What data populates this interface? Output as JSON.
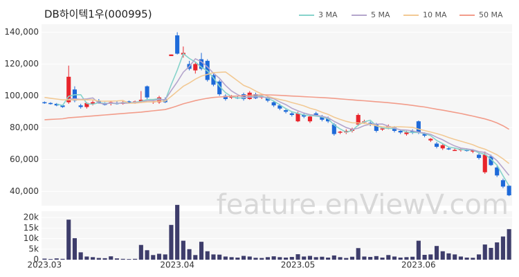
{
  "chart_data": {
    "type": "candlestick",
    "title": "DB하이텍1우(000995)",
    "watermark": "feature.enViewV.com",
    "up_color": "#e8242b",
    "down_color": "#1e6ad9",
    "grid": true,
    "legend": "top-right",
    "categories": [
      "2023.03",
      null,
      null,
      null,
      null,
      null,
      null,
      null,
      null,
      null,
      null,
      null,
      null,
      null,
      null,
      null,
      null,
      null,
      null,
      null,
      null,
      null,
      "2023.04",
      null,
      null,
      null,
      null,
      null,
      null,
      null,
      null,
      null,
      null,
      null,
      null,
      null,
      null,
      null,
      null,
      null,
      null,
      null,
      "2023.05",
      null,
      null,
      null,
      null,
      null,
      null,
      null,
      null,
      null,
      null,
      null,
      null,
      null,
      null,
      null,
      null,
      null,
      null,
      null,
      "2023.06",
      null,
      null,
      null,
      null,
      null,
      null,
      null,
      null,
      null,
      null,
      null,
      null,
      null,
      null,
      null
    ],
    "open": [
      96000,
      95500,
      95000,
      94000,
      96000,
      104000,
      94000,
      93000,
      95000,
      97000,
      95000,
      95000,
      95500,
      95000,
      96500,
      95500,
      96000,
      106000,
      96000,
      96000,
      98000,
      125000,
      138000,
      126000,
      120000,
      116000,
      123000,
      122000,
      113000,
      109000,
      100000,
      99000,
      99000,
      101000,
      98000,
      101000,
      99000,
      99000,
      96000,
      94000,
      91000,
      89000,
      84000,
      88000,
      84000,
      89000,
      87000,
      86000,
      82000,
      77000,
      77000,
      78000,
      82000,
      84000,
      83000,
      82000,
      79000,
      80000,
      80000,
      78000,
      76000,
      78000,
      84000,
      76000,
      72000,
      70000,
      67000,
      67000,
      66000,
      66000,
      66000,
      65000,
      63000,
      52000,
      62000,
      55000,
      47000,
      43500
    ],
    "high": [
      96500,
      96000,
      95500,
      94500,
      119000,
      106000,
      95000,
      96000,
      97000,
      98000,
      96000,
      97000,
      96500,
      97000,
      97000,
      97000,
      103000,
      106500,
      97500,
      100000,
      99000,
      126000,
      140000,
      131000,
      122000,
      121000,
      127000,
      123000,
      114000,
      110000,
      101000,
      100500,
      100000,
      102000,
      103000,
      102000,
      100000,
      100000,
      97000,
      95000,
      92000,
      90000,
      90000,
      89000,
      88000,
      90000,
      88000,
      87000,
      83000,
      78000,
      79000,
      80000,
      89000,
      85000,
      84000,
      83000,
      80000,
      82000,
      81000,
      79000,
      78000,
      79000,
      84500,
      77000,
      73500,
      71000,
      70000,
      68000,
      67000,
      67000,
      67000,
      66500,
      64000,
      65000,
      63000,
      56000,
      48000,
      44000
    ],
    "low": [
      95000,
      94500,
      93500,
      92500,
      95000,
      96000,
      92000,
      92000,
      94000,
      95000,
      94000,
      94000,
      94500,
      94500,
      95000,
      95000,
      95500,
      98000,
      95000,
      95000,
      95500,
      125000,
      126000,
      124000,
      116000,
      114000,
      116000,
      109000,
      106000,
      100000,
      97000,
      98000,
      98000,
      97000,
      97500,
      98000,
      98000,
      96000,
      93000,
      91000,
      89000,
      87000,
      83500,
      86000,
      83000,
      87000,
      84000,
      83000,
      75000,
      76000,
      76000,
      77000,
      81000,
      83000,
      81000,
      77000,
      78000,
      79000,
      77000,
      76000,
      75000,
      76000,
      76000,
      74000,
      71000,
      67000,
      66000,
      66000,
      65500,
      65000,
      65000,
      64000,
      60000,
      51000,
      56000,
      49000,
      42000,
      37000
    ],
    "close": [
      95500,
      95000,
      94000,
      93000,
      112000,
      97000,
      93000,
      95500,
      96000,
      95500,
      94500,
      96000,
      95000,
      96000,
      95500,
      96500,
      97500,
      99000,
      96500,
      99000,
      96000,
      126000,
      126500,
      127000,
      117000,
      120000,
      117000,
      110000,
      107000,
      101000,
      98000,
      99500,
      98500,
      98000,
      102000,
      98500,
      99500,
      97000,
      94000,
      92000,
      90000,
      88000,
      89000,
      87000,
      87000,
      88000,
      85000,
      84000,
      76000,
      77500,
      78000,
      79000,
      88000,
      84000,
      82000,
      78000,
      79500,
      81000,
      78000,
      77000,
      77000,
      77000,
      77000,
      75000,
      73000,
      68000,
      69000,
      66500,
      66000,
      66500,
      65500,
      66000,
      61000,
      63000,
      56500,
      50000,
      43000,
      37500
    ],
    "ylim": [
      31000,
      145000
    ],
    "yticks": [
      {
        "value": 40000,
        "label": "40,000"
      },
      {
        "value": 60000,
        "label": "60,000"
      },
      {
        "value": 80000,
        "label": "80,000"
      },
      {
        "value": 100000,
        "label": "100,000"
      },
      {
        "value": 120000,
        "label": "120,000"
      },
      {
        "value": 140000,
        "label": "140,000"
      }
    ],
    "series": [
      {
        "name": "3 MA",
        "color": "#86d3cb",
        "values": [
          null,
          null,
          94800,
          94000,
          99700,
          100700,
          100700,
          95200,
          94800,
          95700,
          95300,
          95300,
          95200,
          95700,
          95500,
          96000,
          96500,
          97700,
          97700,
          98200,
          97200,
          107000,
          116200,
          126500,
          123500,
          121300,
          118000,
          115700,
          111300,
          106000,
          102000,
          99500,
          98700,
          98700,
          99500,
          99500,
          100000,
          98300,
          96800,
          94300,
          92000,
          90000,
          89000,
          88000,
          87700,
          87300,
          86700,
          85700,
          81700,
          79200,
          77200,
          78200,
          81700,
          83700,
          84700,
          81300,
          79800,
          79500,
          79500,
          78700,
          77300,
          77000,
          77000,
          76300,
          75000,
          72000,
          70000,
          67800,
          67200,
          66300,
          66000,
          66000,
          64200,
          63300,
          60200,
          56500,
          49800,
          43500
        ]
      },
      {
        "name": "5 MA",
        "color": "#b4a5cc",
        "values": [
          null,
          null,
          null,
          null,
          97900,
          98200,
          97800,
          98100,
          98700,
          95400,
          94900,
          95500,
          95400,
          95400,
          95400,
          95800,
          96100,
          96900,
          97000,
          97700,
          97600,
          103300,
          108800,
          114900,
          118500,
          123300,
          121500,
          118200,
          114200,
          111000,
          106600,
          103100,
          100800,
          99000,
          99200,
          99300,
          99300,
          99000,
          98200,
          96200,
          94500,
          92200,
          90600,
          89200,
          88200,
          87800,
          87200,
          86200,
          84000,
          82100,
          80100,
          78900,
          79700,
          81300,
          82200,
          82200,
          82300,
          80900,
          79700,
          78700,
          78500,
          78000,
          77200,
          76600,
          75800,
          74000,
          72400,
          70300,
          68500,
          67200,
          66700,
          66100,
          65000,
          64400,
          62400,
          59300,
          54700,
          50000
        ]
      },
      {
        "name": "10 MA",
        "color": "#f2c994",
        "values": [
          99000,
          98500,
          98000,
          97500,
          97500,
          97500,
          97500,
          97500,
          97500,
          96700,
          96600,
          96700,
          96800,
          97100,
          95400,
          95400,
          95800,
          96200,
          96200,
          96600,
          96700,
          99700,
          102900,
          106000,
          108100,
          110500,
          112400,
          113500,
          114600,
          114800,
          115000,
          112300,
          109500,
          106600,
          105100,
          103000,
          101200,
          99900,
          98600,
          97700,
          96900,
          95800,
          94800,
          93700,
          92200,
          91200,
          89700,
          88400,
          86600,
          85200,
          84000,
          83100,
          83000,
          82700,
          82200,
          81200,
          80600,
          80300,
          80500,
          80500,
          80400,
          80200,
          79100,
          78200,
          77300,
          76300,
          75200,
          73800,
          72600,
          71500,
          70400,
          69300,
          67700,
          66500,
          64800,
          63000,
          60400,
          57500
        ]
      },
      {
        "name": "50 MA",
        "color": "#f29c8a",
        "values": [
          85000,
          85200,
          85400,
          85600,
          86200,
          86500,
          86800,
          87100,
          87400,
          87700,
          88000,
          88300,
          88600,
          88900,
          89200,
          89500,
          89800,
          90200,
          90600,
          91000,
          91400,
          92500,
          93700,
          95000,
          96000,
          97000,
          97800,
          98500,
          99000,
          99300,
          99500,
          99700,
          99900,
          100100,
          100300,
          100500,
          100600,
          100600,
          100500,
          100300,
          100100,
          99900,
          99700,
          99500,
          99300,
          99100,
          98900,
          98700,
          98400,
          98100,
          97800,
          97500,
          97200,
          96900,
          96600,
          96300,
          96000,
          95700,
          95300,
          94900,
          94500,
          94000,
          93500,
          93000,
          92300,
          91600,
          91000,
          90300,
          89600,
          88900,
          88100,
          87300,
          86400,
          85500,
          84400,
          83000,
          81200,
          79000
        ]
      }
    ],
    "volume": {
      "color": "#3e3d6b",
      "values": [
        500,
        300,
        600,
        400,
        19000,
        10200,
        3500,
        1500,
        1200,
        800,
        700,
        1600,
        600,
        400,
        300,
        400,
        7000,
        4500,
        2200,
        2800,
        2500,
        16500,
        26000,
        9000,
        5000,
        2200,
        8500,
        4000,
        2500,
        2400,
        1500,
        1200,
        1000,
        1800,
        1500,
        900,
        800,
        1200,
        1600,
        1200,
        1000,
        1300,
        2600,
        1500,
        1800,
        1200,
        1400,
        1000,
        2000,
        1200,
        800,
        1400,
        5500,
        1500,
        1300,
        1700,
        1000,
        2200,
        1500,
        1000,
        1200,
        1400,
        9000,
        2300,
        2500,
        6500,
        4000,
        3000,
        2500,
        1500,
        1000,
        900,
        2500,
        7200,
        5600,
        8200,
        11000,
        14500
      ],
      "ylim": [
        0,
        23000
      ],
      "yticks": [
        0,
        {
          "value": 5000,
          "label": "5k"
        },
        {
          "value": 10000,
          "label": "10k"
        },
        {
          "value": 15000,
          "label": "15k"
        },
        {
          "value": 20000,
          "label": "20k"
        }
      ]
    }
  }
}
